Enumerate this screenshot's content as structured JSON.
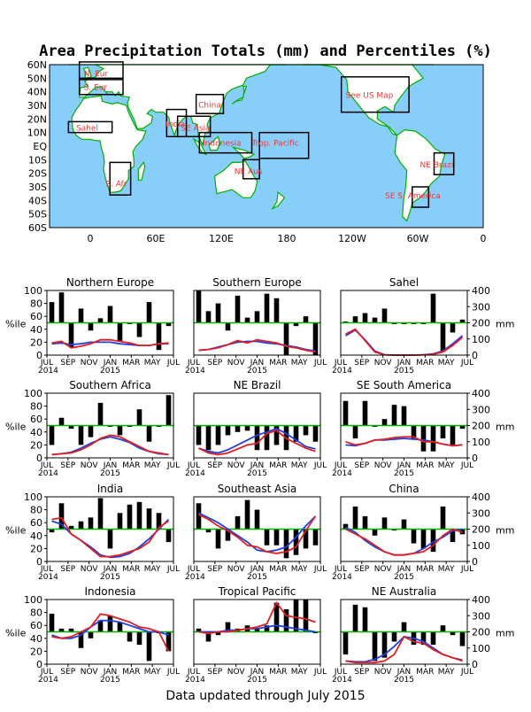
{
  "title": "Area Precipitation Totals (mm) and Percentiles (%)",
  "footer": "Data updated through July 2015",
  "map": {
    "lat_labels": [
      "60N",
      "50N",
      "40N",
      "30N",
      "20N",
      "10N",
      "EQ",
      "10S",
      "20S",
      "30S",
      "40S",
      "50S",
      "60S"
    ],
    "lon_labels": [
      "0",
      "60E",
      "120E",
      "180",
      "120W",
      "60W",
      "0"
    ],
    "region_labels": [
      "N. Eur",
      "S. Eur",
      "Sahel",
      "India",
      "SE Asia",
      "China",
      "Indonesia",
      "Trop. Pacific",
      "NE Aus",
      "S. Afr",
      "See US Map",
      "NE Brazil",
      "SE S. America"
    ],
    "colors": {
      "ocean": "#87CEFA",
      "land": "#ffffff",
      "coast": "#00b000",
      "box": "#000000",
      "label": "#ff3030"
    }
  },
  "panel_axis": {
    "left_label": "%ile",
    "right_label": "mm",
    "left_ticks": [
      "0",
      "20",
      "40",
      "60",
      "80",
      "100"
    ],
    "right_ticks": [
      "0",
      "100",
      "200",
      "300",
      "400"
    ],
    "month_labels": [
      "JUL",
      "SEP",
      "NOV",
      "JAN",
      "MAR",
      "MAY",
      "JUL"
    ],
    "year_labels": [
      "2014",
      "2015"
    ]
  },
  "chart_data": [
    {
      "type": "bar+line",
      "title": "Northern Europe",
      "x": [
        "2014-07",
        "2014-08",
        "2014-09",
        "2014-10",
        "2014-11",
        "2014-12",
        "2015-01",
        "2015-02",
        "2015-03",
        "2015-04",
        "2015-05",
        "2015-06",
        "2015-07"
      ],
      "ylim_percentile": [
        0,
        100
      ],
      "ylim_mm": [
        0,
        400
      ],
      "percentile": [
        82,
        97,
        12,
        72,
        38,
        57,
        76,
        22,
        50,
        28,
        82,
        8,
        45
      ],
      "observed_mm": [
        75,
        85,
        45,
        55,
        70,
        95,
        95,
        85,
        75,
        60,
        60,
        70,
        75
      ],
      "normal_mm": [
        70,
        75,
        65,
        70,
        80,
        80,
        80,
        70,
        65,
        60,
        60,
        70,
        70
      ]
    },
    {
      "type": "bar+line",
      "title": "Southern Europe",
      "x": [
        "2014-07",
        "2014-08",
        "2014-09",
        "2014-10",
        "2014-11",
        "2014-12",
        "2015-01",
        "2015-02",
        "2015-03",
        "2015-04",
        "2015-05",
        "2015-06",
        "2015-07"
      ],
      "ylim_percentile": [
        0,
        100
      ],
      "ylim_mm": [
        0,
        400
      ],
      "percentile": [
        100,
        68,
        80,
        38,
        92,
        58,
        68,
        95,
        88,
        0,
        45,
        60,
        0
      ],
      "observed_mm": [
        30,
        35,
        45,
        65,
        90,
        75,
        95,
        85,
        75,
        55,
        45,
        30,
        20
      ],
      "normal_mm": [
        30,
        35,
        50,
        65,
        80,
        85,
        85,
        75,
        70,
        60,
        50,
        35,
        25
      ]
    },
    {
      "type": "bar+line",
      "title": "Sahel",
      "x": [
        "2014-07",
        "2014-08",
        "2014-09",
        "2014-10",
        "2014-11",
        "2014-12",
        "2015-01",
        "2015-02",
        "2015-03",
        "2015-04",
        "2015-05",
        "2015-06",
        "2015-07"
      ],
      "ylim_percentile": [
        0,
        100
      ],
      "ylim_mm": [
        0,
        400
      ],
      "percentile": [
        52,
        60,
        65,
        58,
        72,
        50,
        50,
        50,
        50,
        95,
        5,
        35,
        55
      ],
      "observed_mm": [
        130,
        160,
        90,
        20,
        2,
        0,
        0,
        0,
        2,
        5,
        20,
        60,
        110
      ],
      "normal_mm": [
        120,
        155,
        95,
        25,
        2,
        0,
        0,
        0,
        2,
        8,
        25,
        70,
        120
      ]
    },
    {
      "type": "bar+line",
      "title": "Southern Africa",
      "x": [
        "2014-07",
        "2014-08",
        "2014-09",
        "2014-10",
        "2014-11",
        "2014-12",
        "2015-01",
        "2015-02",
        "2015-03",
        "2015-04",
        "2015-05",
        "2015-06",
        "2015-07"
      ],
      "ylim_percentile": [
        0,
        100
      ],
      "ylim_mm": [
        0,
        400
      ],
      "percentile": [
        20,
        62,
        45,
        20,
        32,
        85,
        48,
        35,
        50,
        75,
        25,
        50,
        97
      ],
      "observed_mm": [
        20,
        25,
        30,
        50,
        80,
        120,
        140,
        130,
        100,
        70,
        40,
        30,
        20
      ],
      "normal_mm": [
        20,
        25,
        35,
        60,
        90,
        115,
        130,
        115,
        95,
        60,
        40,
        25,
        20
      ]
    },
    {
      "type": "bar+line",
      "title": "NE Brazil",
      "x": [
        "2014-07",
        "2014-08",
        "2014-09",
        "2014-10",
        "2014-11",
        "2014-12",
        "2015-01",
        "2015-02",
        "2015-03",
        "2015-04",
        "2015-05",
        "2015-06",
        "2015-07"
      ],
      "ylim_percentile": [
        0,
        100
      ],
      "ylim_mm": [
        0,
        400
      ],
      "percentile": [
        20,
        12,
        20,
        35,
        40,
        42,
        12,
        12,
        20,
        12,
        25,
        35,
        25
      ],
      "observed_mm": [
        60,
        30,
        20,
        30,
        55,
        80,
        90,
        150,
        170,
        120,
        90,
        60,
        40
      ],
      "normal_mm": [
        60,
        40,
        30,
        50,
        80,
        110,
        140,
        160,
        180,
        150,
        110,
        70,
        55
      ]
    },
    {
      "type": "bar+line",
      "title": "SE South America",
      "x": [
        "2014-07",
        "2014-08",
        "2014-09",
        "2014-10",
        "2014-11",
        "2014-12",
        "2015-01",
        "2015-02",
        "2015-03",
        "2015-04",
        "2015-05",
        "2015-06",
        "2015-07"
      ],
      "ylim_percentile": [
        0,
        100
      ],
      "ylim_mm": [
        0,
        400
      ],
      "percentile": [
        88,
        30,
        88,
        50,
        60,
        82,
        80,
        30,
        10,
        10,
        30,
        20,
        45
      ],
      "observed_mm": [
        100,
        80,
        90,
        110,
        115,
        125,
        130,
        130,
        100,
        100,
        85,
        75,
        80
      ],
      "normal_mm": [
        80,
        75,
        90,
        110,
        110,
        115,
        120,
        115,
        110,
        100,
        85,
        75,
        80
      ]
    },
    {
      "type": "bar+line",
      "title": "India",
      "x": [
        "2014-07",
        "2014-08",
        "2014-09",
        "2014-10",
        "2014-11",
        "2014-12",
        "2015-01",
        "2015-02",
        "2015-03",
        "2015-04",
        "2015-05",
        "2015-06",
        "2015-07"
      ],
      "ylim_percentile": [
        0,
        100
      ],
      "ylim_mm": [
        0,
        400
      ],
      "percentile": [
        45,
        90,
        55,
        62,
        68,
        98,
        20,
        75,
        88,
        92,
        82,
        75,
        30
      ],
      "observed_mm": [
        260,
        270,
        170,
        130,
        80,
        30,
        30,
        40,
        60,
        80,
        120,
        210,
        250
      ],
      "normal_mm": [
        250,
        230,
        170,
        130,
        90,
        40,
        25,
        30,
        50,
        90,
        140,
        200,
        260
      ]
    },
    {
      "type": "bar+line",
      "title": "Southeast Asia",
      "x": [
        "2014-07",
        "2014-08",
        "2014-09",
        "2014-10",
        "2014-11",
        "2014-12",
        "2015-01",
        "2015-02",
        "2015-03",
        "2015-04",
        "2015-05",
        "2015-06",
        "2015-07"
      ],
      "ylim_percentile": [
        0,
        100
      ],
      "ylim_mm": [
        0,
        400
      ],
      "percentile": [
        90,
        45,
        20,
        32,
        70,
        95,
        80,
        25,
        25,
        5,
        10,
        20,
        25
      ],
      "observed_mm": [
        290,
        260,
        220,
        190,
        150,
        100,
        90,
        60,
        50,
        60,
        90,
        190,
        280
      ],
      "normal_mm": [
        300,
        270,
        240,
        200,
        160,
        120,
        70,
        60,
        70,
        90,
        150,
        220,
        280
      ]
    },
    {
      "type": "bar+line",
      "title": "China",
      "x": [
        "2014-07",
        "2014-08",
        "2014-09",
        "2014-10",
        "2014-11",
        "2014-12",
        "2015-01",
        "2015-02",
        "2015-03",
        "2015-04",
        "2015-05",
        "2015-06",
        "2015-07"
      ],
      "ylim_percentile": [
        0,
        100
      ],
      "ylim_mm": [
        0,
        400
      ],
      "percentile": [
        58,
        85,
        70,
        40,
        68,
        50,
        65,
        28,
        20,
        15,
        85,
        30,
        42
      ],
      "observed_mm": [
        200,
        170,
        140,
        100,
        60,
        40,
        40,
        50,
        60,
        100,
        160,
        200,
        180
      ],
      "normal_mm": [
        210,
        180,
        130,
        90,
        60,
        40,
        40,
        50,
        80,
        120,
        150,
        190,
        200
      ]
    },
    {
      "type": "bar+line",
      "title": "Indonesia",
      "x": [
        "2014-07",
        "2014-08",
        "2014-09",
        "2014-10",
        "2014-11",
        "2014-12",
        "2015-01",
        "2015-02",
        "2015-03",
        "2015-04",
        "2015-05",
        "2015-06",
        "2015-07"
      ],
      "ylim_percentile": [
        0,
        100
      ],
      "ylim_mm": [
        0,
        400
      ],
      "percentile": [
        78,
        55,
        55,
        25,
        40,
        68,
        75,
        65,
        35,
        30,
        5,
        50,
        20
      ],
      "observed_mm": [
        170,
        160,
        170,
        200,
        230,
        310,
        300,
        280,
        260,
        230,
        220,
        200,
        80
      ],
      "normal_mm": [
        180,
        160,
        160,
        180,
        230,
        270,
        270,
        260,
        240,
        220,
        200,
        200,
        180
      ]
    },
    {
      "type": "bar+line",
      "title": "Tropical Pacific",
      "x": [
        "2014-07",
        "2014-08",
        "2014-09",
        "2014-10",
        "2014-11",
        "2014-12",
        "2015-01",
        "2015-02",
        "2015-03",
        "2015-04",
        "2015-05",
        "2015-06",
        "2015-07"
      ],
      "ylim_percentile": [
        0,
        100
      ],
      "ylim_mm": [
        0,
        400
      ],
      "percentile": [
        55,
        35,
        45,
        65,
        55,
        60,
        55,
        60,
        95,
        85,
        100,
        100,
        50
      ],
      "observed_mm": [
        200,
        190,
        200,
        200,
        210,
        220,
        230,
        250,
        380,
        300,
        290,
        280,
        260
      ],
      "normal_mm": [
        200,
        200,
        200,
        210,
        210,
        220,
        220,
        230,
        240,
        230,
        220,
        210,
        200
      ]
    },
    {
      "type": "bar+line",
      "title": "NE Australia",
      "x": [
        "2014-07",
        "2014-08",
        "2014-09",
        "2014-10",
        "2014-11",
        "2014-12",
        "2015-01",
        "2015-02",
        "2015-03",
        "2015-04",
        "2015-05",
        "2015-06",
        "2015-07"
      ],
      "ylim_percentile": [
        0,
        100
      ],
      "ylim_mm": [
        0,
        400
      ],
      "percentile": [
        15,
        92,
        88,
        5,
        10,
        35,
        65,
        30,
        30,
        30,
        60,
        45,
        28
      ],
      "observed_mm": [
        20,
        10,
        10,
        10,
        20,
        60,
        170,
        140,
        130,
        90,
        60,
        40,
        20
      ],
      "normal_mm": [
        20,
        15,
        15,
        30,
        60,
        110,
        170,
        160,
        140,
        100,
        60,
        40,
        25
      ]
    }
  ],
  "colors": {
    "bars": "#000000",
    "observed_line": "#e02020",
    "normal_line": "#2040e0",
    "percentile_50_line": "#00b000",
    "frame": "#000000"
  }
}
